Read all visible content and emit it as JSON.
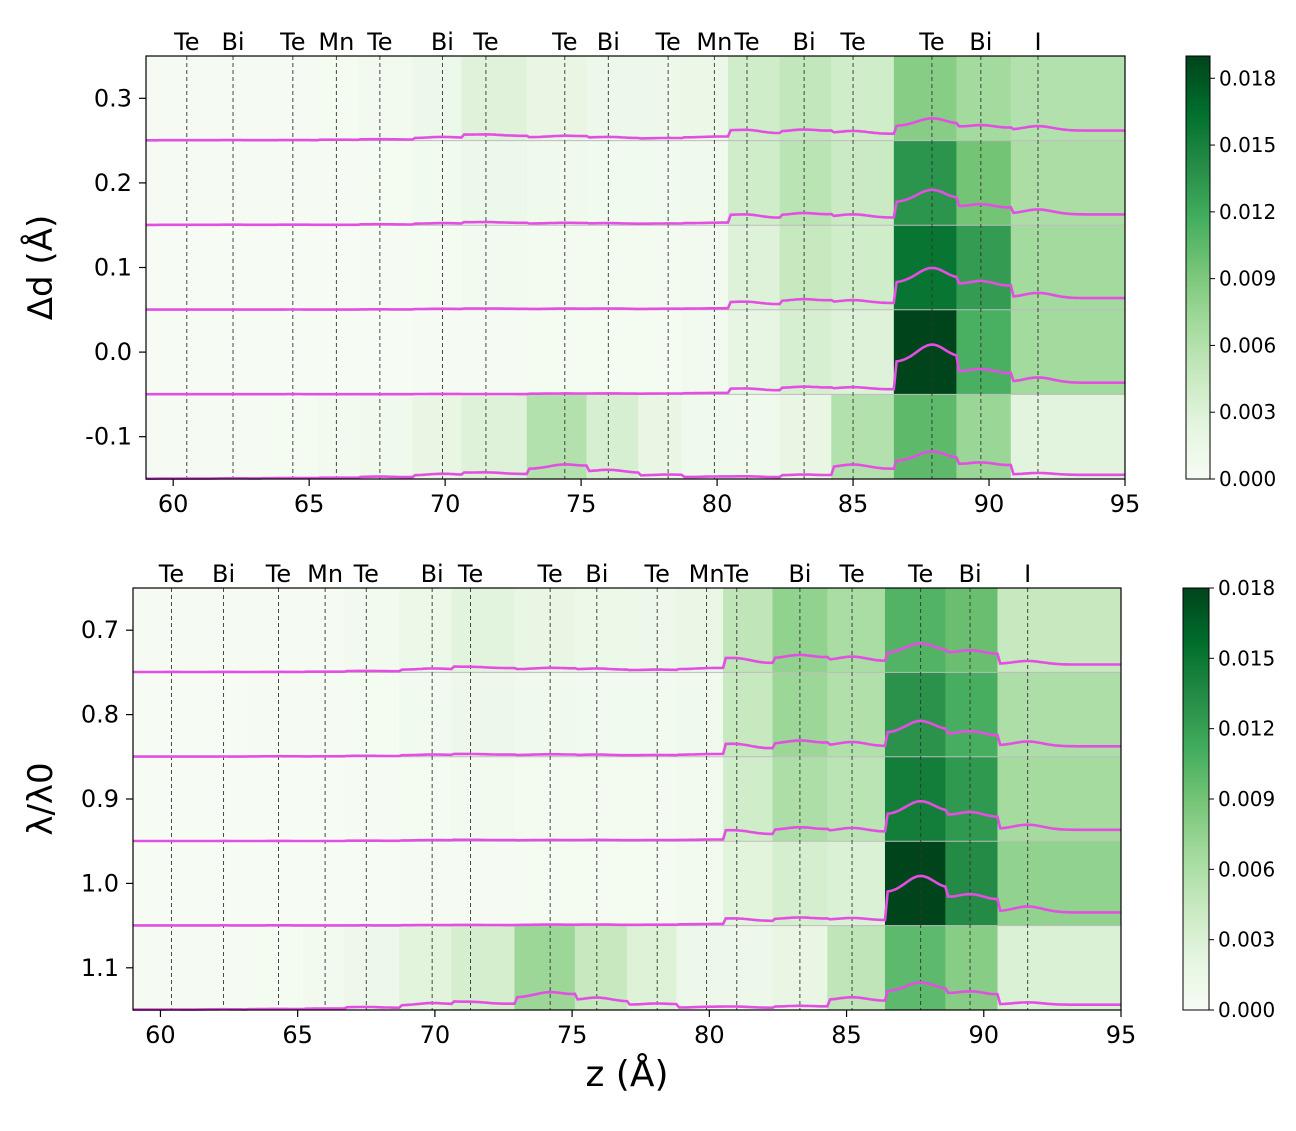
{
  "chart_data": [
    {
      "type": "heatmap",
      "title": "",
      "xlabel": "",
      "ylabel": "Δd (Å)",
      "xlim": [
        59,
        95
      ],
      "ylim": [
        -0.15,
        0.35
      ],
      "xticks": [
        60,
        65,
        70,
        75,
        80,
        85,
        90,
        95
      ],
      "xtick_labels": [
        "60",
        "65",
        "70",
        "75",
        "80",
        "85",
        "90",
        "95"
      ],
      "yticks": [
        0.3,
        0.2,
        0.1,
        0.0,
        -0.1
      ],
      "ytick_labels": [
        "0.3",
        "0.2",
        "0.1",
        "0.0",
        "-0.1"
      ],
      "atom_labels": [
        {
          "label": "Te",
          "z": 60.5
        },
        {
          "label": "Bi",
          "z": 62.2
        },
        {
          "label": "Te",
          "z": 64.4
        },
        {
          "label": "Mn",
          "z": 66.0
        },
        {
          "label": "Te",
          "z": 67.6
        },
        {
          "label": "Bi",
          "z": 69.9
        },
        {
          "label": "Te",
          "z": 71.5
        },
        {
          "label": "Te",
          "z": 74.4
        },
        {
          "label": "Bi",
          "z": 76.0
        },
        {
          "label": "Te",
          "z": 78.2
        },
        {
          "label": "Mn",
          "z": 79.9
        },
        {
          "label": "Te",
          "z": 81.1
        },
        {
          "label": "Bi",
          "z": 83.2
        },
        {
          "label": "Te",
          "z": 85.0
        },
        {
          "label": "Te",
          "z": 87.9
        },
        {
          "label": "Bi",
          "z": 89.7
        },
        {
          "label": "I",
          "z": 91.8
        }
      ],
      "atom_z": [
        60.5,
        62.2,
        64.4,
        66.0,
        67.6,
        69.9,
        71.5,
        74.4,
        76.0,
        78.2,
        79.9,
        81.1,
        83.2,
        85.0,
        87.9,
        89.7,
        91.8
      ],
      "rows": [
        0.3,
        0.2,
        0.1,
        0.0,
        -0.1
      ],
      "row_edges": [
        0.35,
        0.25,
        0.15,
        0.05,
        -0.05,
        -0.15
      ],
      "x_edges": [
        59,
        61.5,
        63.3,
        65.3,
        66.8,
        68.8,
        70.6,
        73.0,
        75.2,
        77.1,
        78.7,
        80.4,
        82.3,
        84.2,
        86.5,
        88.8,
        90.8,
        95
      ],
      "values": [
        [
          0.0002,
          0.0002,
          0.0002,
          0.0004,
          0.0006,
          0.0014,
          0.0028,
          0.002,
          0.0014,
          0.0012,
          0.0016,
          0.004,
          0.005,
          0.004,
          0.0085,
          0.007,
          0.006
        ],
        [
          0.0002,
          0.0002,
          0.0002,
          0.0002,
          0.0004,
          0.0008,
          0.0014,
          0.001,
          0.0008,
          0.0008,
          0.001,
          0.004,
          0.0055,
          0.0045,
          0.0135,
          0.0095,
          0.0065
        ],
        [
          0.0001,
          0.0001,
          0.0001,
          0.0001,
          0.0002,
          0.0004,
          0.0006,
          0.0005,
          0.0005,
          0.0005,
          0.0006,
          0.003,
          0.0048,
          0.004,
          0.016,
          0.013,
          0.007
        ],
        [
          0.0001,
          0.0001,
          0.0001,
          0.0001,
          0.0001,
          0.0002,
          0.0002,
          0.0004,
          0.0004,
          0.0004,
          0.0006,
          0.0022,
          0.0035,
          0.003,
          0.019,
          0.0115,
          0.007
        ],
        [
          0.0002,
          0.0003,
          0.0004,
          0.0006,
          0.001,
          0.002,
          0.003,
          0.006,
          0.0035,
          0.002,
          0.001,
          0.001,
          0.002,
          0.006,
          0.0105,
          0.0075,
          0.0025
        ]
      ],
      "colorbar": {
        "min": 0.0,
        "max": 0.019,
        "ticks": [
          0.0,
          0.003,
          0.006,
          0.009,
          0.012,
          0.015,
          0.018
        ],
        "tick_labels": [
          "0.000",
          "0.003",
          "0.006",
          "0.009",
          "0.012",
          "0.015",
          "0.018"
        ]
      },
      "line_color": "#e34ee3",
      "colormap": "Greens"
    },
    {
      "type": "heatmap",
      "title": "",
      "xlabel": "z (Å)",
      "ylabel": "λ/λ0",
      "xlim": [
        59,
        95
      ],
      "ylim": [
        0.65,
        1.15
      ],
      "xticks": [
        60,
        65,
        70,
        75,
        80,
        85,
        90,
        95
      ],
      "xtick_labels": [
        "60",
        "65",
        "70",
        "75",
        "80",
        "85",
        "90",
        "95"
      ],
      "yticks": [
        0.7,
        0.8,
        0.9,
        1.0,
        1.1
      ],
      "ytick_labels": [
        "0.7",
        "0.8",
        "0.9",
        "1.0",
        "1.1"
      ],
      "atom_labels": [
        {
          "label": "Te",
          "z": 60.4
        },
        {
          "label": "Bi",
          "z": 62.3
        },
        {
          "label": "Te",
          "z": 64.3
        },
        {
          "label": "Mn",
          "z": 66.0
        },
        {
          "label": "Te",
          "z": 67.5
        },
        {
          "label": "Bi",
          "z": 69.9
        },
        {
          "label": "Te",
          "z": 71.3
        },
        {
          "label": "Te",
          "z": 74.2
        },
        {
          "label": "Bi",
          "z": 75.9
        },
        {
          "label": "Te",
          "z": 78.1
        },
        {
          "label": "Mn",
          "z": 79.9
        },
        {
          "label": "Te",
          "z": 81.0
        },
        {
          "label": "Bi",
          "z": 83.3
        },
        {
          "label": "Te",
          "z": 85.2
        },
        {
          "label": "Te",
          "z": 87.7
        },
        {
          "label": "Bi",
          "z": 89.5
        },
        {
          "label": "I",
          "z": 91.6
        }
      ],
      "atom_z": [
        60.4,
        62.3,
        64.3,
        66.0,
        67.5,
        69.9,
        71.3,
        74.2,
        75.9,
        78.1,
        79.9,
        81.0,
        83.3,
        85.2,
        87.7,
        89.5,
        91.6
      ],
      "rows": [
        0.7,
        0.8,
        0.9,
        1.0,
        1.1
      ],
      "row_edges": [
        0.65,
        0.75,
        0.85,
        0.95,
        1.05,
        1.15
      ],
      "x_edges": [
        59,
        61.4,
        63.2,
        65.2,
        66.7,
        68.7,
        70.6,
        72.9,
        75.1,
        77.0,
        78.8,
        80.5,
        82.3,
        84.3,
        86.4,
        88.6,
        90.5,
        95
      ],
      "values": [
        [
          0.0002,
          0.0002,
          0.0002,
          0.0003,
          0.0006,
          0.0014,
          0.0024,
          0.0018,
          0.0014,
          0.0012,
          0.0016,
          0.005,
          0.0075,
          0.0062,
          0.0105,
          0.0095,
          0.0045
        ],
        [
          0.0001,
          0.0001,
          0.0002,
          0.0002,
          0.0004,
          0.0008,
          0.0012,
          0.001,
          0.0008,
          0.0008,
          0.001,
          0.0045,
          0.007,
          0.0058,
          0.013,
          0.011,
          0.006
        ],
        [
          0.0001,
          0.0001,
          0.0001,
          0.0001,
          0.0002,
          0.0004,
          0.0006,
          0.0005,
          0.0005,
          0.0005,
          0.0006,
          0.0038,
          0.006,
          0.0052,
          0.0145,
          0.0125,
          0.0065
        ],
        [
          0.0001,
          0.0001,
          0.0001,
          0.0001,
          0.0001,
          0.0002,
          0.0003,
          0.0004,
          0.0004,
          0.0004,
          0.0006,
          0.0025,
          0.0035,
          0.003,
          0.018,
          0.0135,
          0.0075
        ],
        [
          0.0002,
          0.0003,
          0.0004,
          0.0006,
          0.0012,
          0.0025,
          0.0035,
          0.007,
          0.0045,
          0.0028,
          0.0012,
          0.0012,
          0.0018,
          0.005,
          0.01,
          0.008,
          0.003
        ]
      ],
      "colorbar": {
        "min": 0.0,
        "max": 0.018,
        "ticks": [
          0.0,
          0.003,
          0.006,
          0.009,
          0.012,
          0.015,
          0.018
        ],
        "tick_labels": [
          "0.000",
          "0.003",
          "0.006",
          "0.009",
          "0.012",
          "0.015",
          "0.018"
        ]
      },
      "line_color": "#e34ee3",
      "colormap": "Greens"
    }
  ]
}
